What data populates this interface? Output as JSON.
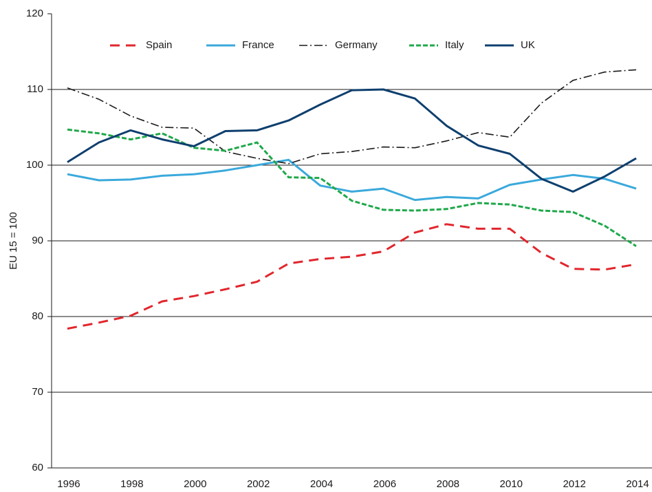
{
  "chart_data": {
    "type": "line",
    "ylabel": "EU 15 = 100",
    "x": [
      1996,
      1997,
      1998,
      1999,
      2000,
      2001,
      2002,
      2003,
      2004,
      2005,
      2006,
      2007,
      2008,
      2009,
      2010,
      2011,
      2012,
      2013,
      2014
    ],
    "series": [
      {
        "name": "Spain",
        "color": "#e1262d",
        "values": [
          78.4,
          79.2,
          80.1,
          82.0,
          82.7,
          83.6,
          84.6,
          87.0,
          87.6,
          87.9,
          88.6,
          91.1,
          92.2,
          91.6,
          91.6,
          88.4,
          86.3,
          86.2,
          86.9
        ]
      },
      {
        "name": "France",
        "color": "#3aa9dc",
        "values": [
          98.8,
          98.0,
          98.1,
          98.6,
          98.8,
          99.3,
          100.0,
          100.7,
          97.3,
          96.5,
          96.9,
          95.4,
          95.8,
          95.6,
          97.4,
          98.1,
          98.7,
          98.2,
          96.9
        ]
      },
      {
        "name": "Germany",
        "color": "#1a1a1a",
        "values": [
          110.2,
          108.7,
          106.5,
          105.0,
          104.9,
          101.8,
          100.9,
          100.2,
          101.5,
          101.8,
          102.4,
          102.3,
          103.2,
          104.3,
          103.7,
          108.2,
          111.2,
          112.3,
          112.6
        ]
      },
      {
        "name": "Italy",
        "color": "#1fa84a",
        "values": [
          104.7,
          104.2,
          103.4,
          104.2,
          102.3,
          101.9,
          103.0,
          98.4,
          98.3,
          95.3,
          94.1,
          94.0,
          94.2,
          95.0,
          94.8,
          94.0,
          93.8,
          92.0,
          89.3
        ]
      },
      {
        "name": "UK",
        "color": "#0e3f6e",
        "values": [
          100.4,
          103.0,
          104.6,
          103.4,
          102.5,
          104.5,
          104.6,
          105.9,
          108.0,
          109.9,
          110.0,
          108.8,
          105.2,
          102.6,
          101.5,
          98.2,
          96.5,
          98.5,
          100.9
        ]
      }
    ],
    "xlim": [
      1995.5,
      2014.5
    ],
    "xticks": [
      1996,
      1998,
      2000,
      2002,
      2004,
      2006,
      2008,
      2010,
      2012,
      2014
    ],
    "ylim": [
      60,
      120
    ],
    "yticks": [
      60,
      70,
      80,
      90,
      100,
      110,
      120
    ],
    "grid": true,
    "legend": "top"
  }
}
